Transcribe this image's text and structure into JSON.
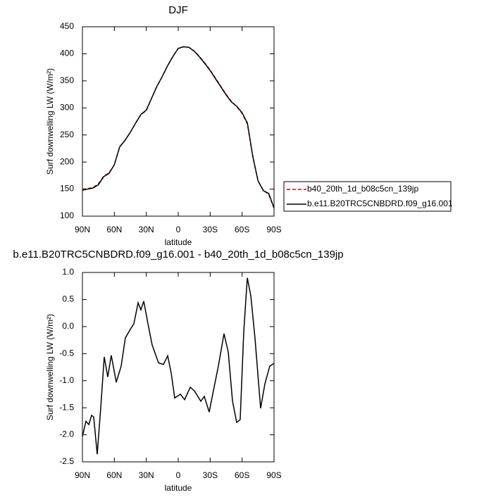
{
  "chart_data": [
    {
      "type": "line",
      "title": "DJF",
      "xlabel": "latitude",
      "ylabel": "Surf downwelling LW (W/m²)",
      "x": [
        90,
        85,
        80,
        75,
        70,
        65,
        60,
        55,
        50,
        45,
        40,
        35,
        30,
        25,
        20,
        15,
        10,
        5,
        0,
        -5,
        -10,
        -15,
        -20,
        -25,
        -30,
        -35,
        -40,
        -45,
        -50,
        -55,
        -60,
        -65,
        -70,
        -75,
        -80,
        -85,
        -90
      ],
      "series": [
        {
          "name": "b40_20th_1d_b08c5cn_139jp",
          "color": "#cc0000",
          "line_style": "dashed",
          "values": [
            150,
            151,
            153,
            160,
            174,
            180,
            195,
            228,
            240,
            255,
            272,
            288,
            295,
            318,
            340,
            358,
            378,
            395,
            410,
            413,
            412,
            405,
            395,
            383,
            370,
            355,
            340,
            325,
            312,
            302,
            290,
            270,
            210,
            165,
            148,
            140,
            115
          ]
        },
        {
          "name": "b.e11.B20TRC5CNBDRD.f09_g16.001",
          "color": "#000000",
          "line_style": "solid",
          "values": [
            148,
            150,
            152,
            158,
            173,
            179,
            195,
            228,
            240,
            255,
            272,
            288,
            296,
            318,
            340,
            358,
            378,
            395,
            410,
            413,
            412,
            405,
            394,
            382,
            369,
            354,
            339,
            324,
            311,
            303,
            291,
            272,
            211,
            165,
            147,
            142,
            115
          ]
        }
      ],
      "xlim": [
        90,
        -90
      ],
      "xticks": [
        {
          "value": 90,
          "label": "90N"
        },
        {
          "value": 60,
          "label": "60N"
        },
        {
          "value": 30,
          "label": "30N"
        },
        0,
        {
          "value": -30,
          "label": "30S"
        },
        {
          "value": -60,
          "label": "60S"
        },
        {
          "value": -90,
          "label": "90S"
        }
      ],
      "ylim": [
        100,
        450
      ],
      "yticks": [
        100,
        150,
        200,
        250,
        300,
        350,
        400,
        450
      ],
      "legend": "right"
    },
    {
      "type": "line",
      "title": "b.e11.B20TRC5CNBDRD.f09_g16.001 - b40_20th_1d_b08c5cn_139jp",
      "xlabel": "latitude",
      "ylabel": "Surf downwelling LW (W/m²)",
      "x": [
        90,
        86.7,
        84,
        81.4,
        79.4,
        76.1,
        72.8,
        69.5,
        66.2,
        62.9,
        58.2,
        53.6,
        49.7,
        45,
        41.7,
        37.7,
        35.1,
        32.4,
        28.4,
        24.5,
        18.5,
        13.9,
        9.9,
        6.6,
        3.3,
        -2,
        -6,
        -11.3,
        -15.3,
        -21.2,
        -24.5,
        -29.1,
        -32.4,
        -37.7,
        -43,
        -47,
        -51,
        -54.9,
        -58.2,
        -61.6,
        -64.9,
        -68.2,
        -72.1,
        -77.4,
        -81.4,
        -86,
        -90
      ],
      "series": [
        {
          "name": "difference",
          "color": "#000000",
          "line_style": "solid",
          "values": [
            -2.03,
            -1.75,
            -1.81,
            -1.64,
            -1.67,
            -2.36,
            -1.5,
            -0.56,
            -0.93,
            -0.53,
            -1.03,
            -0.73,
            -0.21,
            -0.05,
            0.05,
            0.44,
            0.31,
            0.47,
            0.05,
            -0.34,
            -0.67,
            -0.7,
            -0.54,
            -0.86,
            -1.32,
            -1.25,
            -1.35,
            -1.12,
            -1.19,
            -1.38,
            -1.29,
            -1.58,
            -1.25,
            -0.73,
            -0.13,
            -0.47,
            -1.38,
            -1.77,
            -1.72,
            -0.08,
            0.9,
            0.57,
            -0.21,
            -1.51,
            -1.06,
            -0.73,
            -0.68
          ]
        }
      ],
      "xlim": [
        90,
        -90
      ],
      "xticks": [
        {
          "value": 90,
          "label": "90N"
        },
        {
          "value": 60,
          "label": "60N"
        },
        {
          "value": 30,
          "label": "30N"
        },
        0,
        {
          "value": -30,
          "label": "30S"
        },
        {
          "value": -60,
          "label": "60S"
        },
        {
          "value": -90,
          "label": "90S"
        }
      ],
      "ylim": [
        -2.5,
        1.0
      ],
      "yticks": [
        -2.5,
        {
          "value": -2.0,
          "label": "-2.0"
        },
        -1.5,
        {
          "value": -1.0,
          "label": "-1.0"
        },
        -0.5,
        {
          "value": 0.0,
          "label": "0.0"
        },
        0.5,
        {
          "value": 1.0,
          "label": "1.0"
        }
      ]
    }
  ]
}
